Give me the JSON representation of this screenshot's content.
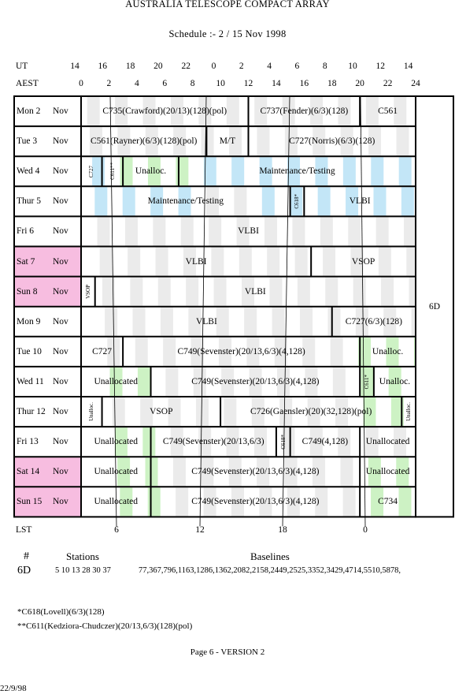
{
  "title": "AUSTRALIA TELESCOPE COMPACT ARRAY",
  "subtitle": "Schedule :- 2 / 15 Nov 1998",
  "ut_label": "UT",
  "aest_label": "AEST",
  "lst_label": "LST",
  "ut_ticks": [
    "14",
    "16",
    "18",
    "20",
    "22",
    "0",
    "2",
    "4",
    "6",
    "8",
    "10",
    "12",
    "14"
  ],
  "aest_ticks": [
    "0",
    "2",
    "4",
    "6",
    "8",
    "10",
    "12",
    "14",
    "16",
    "18",
    "20",
    "22",
    "24"
  ],
  "lst_ticks": [
    "6",
    "12",
    "18",
    "0"
  ],
  "config_label": "6D",
  "days": [
    {
      "dow": "Mon",
      "date": "2",
      "mon": "Nov",
      "weekend": false,
      "blocks": [
        {
          "label": "C735(Crawford)(20/13)(128)(pol)",
          "start": 0,
          "end": 12
        },
        {
          "label": "C737(Fender)(6/3)(128)",
          "start": 12,
          "end": 20
        },
        {
          "label": "C561",
          "start": 20,
          "end": 24
        }
      ]
    },
    {
      "dow": "Tue",
      "date": "3",
      "mon": "Nov",
      "weekend": false,
      "blocks": [
        {
          "label": "C561(Rayner)(6/3)(128)(pol)",
          "start": 0,
          "end": 9
        },
        {
          "label": "M/T",
          "start": 9,
          "end": 12
        },
        {
          "label": "C727(Norris)(6/3)(128)",
          "start": 12,
          "end": 24
        }
      ]
    },
    {
      "dow": "Wed",
      "date": "4",
      "mon": "Nov",
      "weekend": false,
      "blocks": [
        {
          "label": "C727",
          "start": 0,
          "end": 1.5,
          "vertical": true
        },
        {
          "label": "C611**",
          "start": 1.5,
          "end": 3,
          "vertical": true
        },
        {
          "label": "Unalloc.",
          "start": 3,
          "end": 7
        },
        {
          "label": "Maintenance/Testing",
          "start": 7,
          "end": 24
        }
      ]
    },
    {
      "dow": "Thur",
      "date": "5",
      "mon": "Nov",
      "weekend": false,
      "blocks": [
        {
          "label": "Maintenance/Testing",
          "start": 0,
          "end": 15
        },
        {
          "label": "C618*",
          "start": 15,
          "end": 16,
          "vertical": true
        },
        {
          "label": "VLBI",
          "start": 16,
          "end": 24
        }
      ]
    },
    {
      "dow": "Fri",
      "date": "6",
      "mon": "Nov",
      "weekend": false,
      "blocks": [
        {
          "label": "VLBI",
          "start": 0,
          "end": 24
        }
      ]
    },
    {
      "dow": "Sat",
      "date": "7",
      "mon": "Nov",
      "weekend": true,
      "blocks": [
        {
          "label": "VLBI",
          "start": 0,
          "end": 16.5
        },
        {
          "label": "VSOP",
          "start": 16.5,
          "end": 24
        }
      ]
    },
    {
      "dow": "Sun",
      "date": "8",
      "mon": "Nov",
      "weekend": true,
      "blocks": [
        {
          "label": "VSOP",
          "start": 0,
          "end": 1,
          "vertical": true
        },
        {
          "label": "VLBI",
          "start": 1,
          "end": 24
        }
      ]
    },
    {
      "dow": "Mon",
      "date": "9",
      "mon": "Nov",
      "weekend": false,
      "blocks": [
        {
          "label": "VLBI",
          "start": 0,
          "end": 18
        },
        {
          "label": "C727(6/3)(128)",
          "start": 18,
          "end": 24
        }
      ]
    },
    {
      "dow": "Tue",
      "date": "10",
      "mon": "Nov",
      "weekend": false,
      "blocks": [
        {
          "label": "C727",
          "start": 0,
          "end": 3
        },
        {
          "label": "C749(Sevenster)(20/13,6/3)(4,128)",
          "start": 3,
          "end": 20
        },
        {
          "label": "Unalloc.",
          "start": 20,
          "end": 24
        }
      ]
    },
    {
      "dow": "Wed",
      "date": "11",
      "mon": "Nov",
      "weekend": false,
      "blocks": [
        {
          "label": "Unallocated",
          "start": 0,
          "end": 5
        },
        {
          "label": "C749(Sevenster)(20/13,6/3)(4,128)",
          "start": 5,
          "end": 20
        },
        {
          "label": "C611*",
          "start": 20,
          "end": 21,
          "vertical": true
        },
        {
          "label": "Unalloc.",
          "start": 21,
          "end": 24
        }
      ]
    },
    {
      "dow": "Thur",
      "date": "12",
      "mon": "Nov",
      "weekend": false,
      "blocks": [
        {
          "label": "Unalloc.",
          "start": 0,
          "end": 1.5,
          "vertical": true
        },
        {
          "label": "VSOP",
          "start": 1.5,
          "end": 10
        },
        {
          "label": "C726(Gaensler)(20)(32,128)(pol)",
          "start": 10,
          "end": 23
        },
        {
          "label": "Unalloc.",
          "start": 23,
          "end": 24,
          "vertical": true
        }
      ]
    },
    {
      "dow": "Fri",
      "date": "13",
      "mon": "Nov",
      "weekend": false,
      "blocks": [
        {
          "label": "Unallocated",
          "start": 0,
          "end": 5
        },
        {
          "label": "C749(Sevenster)(20/13,6/3)",
          "start": 5,
          "end": 14
        },
        {
          "label": "C618*",
          "start": 14,
          "end": 15,
          "vertical": true
        },
        {
          "label": "C749(4,128)",
          "start": 15,
          "end": 20
        },
        {
          "label": "Unallocated",
          "start": 20,
          "end": 24
        }
      ]
    },
    {
      "dow": "Sat",
      "date": "14",
      "mon": "Nov",
      "weekend": true,
      "blocks": [
        {
          "label": "Unallocated",
          "start": 0,
          "end": 5
        },
        {
          "label": "C749(Sevenster)(20/13,6/3)(4,128)",
          "start": 5,
          "end": 20
        },
        {
          "label": "Unallocated",
          "start": 20,
          "end": 24
        }
      ]
    },
    {
      "dow": "Sun",
      "date": "15",
      "mon": "Nov",
      "weekend": true,
      "blocks": [
        {
          "label": "Unallocated",
          "start": 0,
          "end": 5
        },
        {
          "label": "C749(Sevenster)(20/13,6/3)(4,128)",
          "start": 5,
          "end": 20
        },
        {
          "label": "C734",
          "start": 20,
          "end": 24
        }
      ]
    }
  ],
  "config_table": {
    "hash_label": "#",
    "stations_label": "Stations",
    "baselines_label": "Baselines",
    "config": "6D",
    "stations": "5 10 13 28 30 37",
    "baselines": "77,367,796,1163,1286,1362,2082,2158,2449,2525,3352,3429,4714,5510,5878,"
  },
  "footnotes": [
    "*C618(Lovell)(6/3)(128)",
    "**C611(Kedziora-Chudczer)(20/13,6/3)(128)(pol)"
  ],
  "page_label": "Page 6 - VERSION 2",
  "date_stamp": "22/9/98",
  "colors": {
    "weekend": "#f7bde0",
    "blue": "#c3e6f7",
    "green": "#cdf2c4",
    "gray": "#ebebeb"
  }
}
